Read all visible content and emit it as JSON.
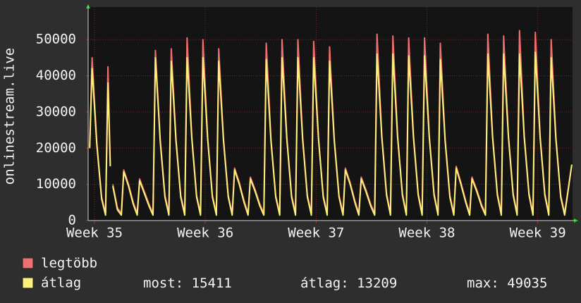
{
  "chart_data": {
    "type": "line",
    "ylabel": "onlinestream.live",
    "x": [
      -0.3,
      -0.15,
      0.15,
      0.45,
      0.7,
      0.85,
      1.0,
      1.08,
      1.16,
      1.45,
      1.7,
      1.85,
      2.15,
      2.45,
      2.7,
      2.85,
      3.15,
      3.45,
      3.7,
      3.85,
      4.15,
      4.45,
      4.7,
      4.85,
      5.15,
      5.45,
      5.7,
      5.85,
      6.15,
      6.45,
      6.7,
      6.85,
      7.15,
      7.45,
      7.7,
      7.85,
      8.15,
      8.45,
      8.7,
      8.85,
      9.15,
      9.45,
      9.7,
      9.85,
      10.15,
      10.45,
      10.7,
      10.85,
      11.15,
      11.45,
      11.7,
      11.85,
      12.15,
      12.45,
      12.7,
      12.85,
      13.15,
      13.45,
      13.7,
      13.85,
      14.15,
      14.45,
      14.7,
      14.85,
      15.15,
      15.45,
      15.7,
      15.85,
      16.15,
      16.45,
      16.7,
      16.85,
      17.15,
      17.45,
      17.7,
      17.85,
      18.15,
      18.45,
      18.7,
      18.85,
      19.15,
      19.45,
      19.7,
      19.85,
      20.15,
      20.45,
      20.7,
      20.85,
      21.15,
      21.45,
      21.7,
      21.85,
      22.15,
      22.45,
      22.7,
      22.85,
      23.15,
      23.45,
      23.7,
      23.85,
      24.15,
      24.45,
      24.7,
      24.85,
      25.15,
      25.45,
      25.7,
      25.85,
      26.15,
      26.45,
      26.7,
      26.85,
      27.15,
      27.45,
      27.7,
      27.85,
      28.15,
      28.45,
      28.7,
      28.85,
      29.15,
      29.45,
      29.7,
      30.15
    ],
    "series": [
      {
        "name": "legtöbb",
        "color": "#f07070",
        "values": [
          20500,
          45000,
          21500,
          6500,
          2000,
          42500,
          15500,
          null,
          10000,
          3500,
          2000,
          14000,
          10000,
          5000,
          2000,
          11500,
          8000,
          4500,
          2000,
          47000,
          22500,
          7000,
          2000,
          47500,
          22500,
          7000,
          2000,
          50500,
          23000,
          7000,
          2000,
          50000,
          23000,
          7000,
          2000,
          47500,
          22500,
          7000,
          2000,
          14500,
          10500,
          5500,
          2000,
          12000,
          8500,
          4500,
          2000,
          49000,
          22500,
          7000,
          2000,
          50000,
          23000,
          7000,
          2000,
          50000,
          23000,
          7000,
          2000,
          49500,
          23000,
          7000,
          2000,
          48000,
          22500,
          7000,
          2000,
          14500,
          10500,
          5500,
          2000,
          12000,
          8500,
          4500,
          2000,
          51500,
          23500,
          7500,
          2000,
          51000,
          23500,
          7500,
          2000,
          50500,
          23500,
          7500,
          2000,
          50500,
          23500,
          7500,
          2000,
          49000,
          22500,
          7000,
          2000,
          15000,
          10500,
          5500,
          2000,
          12000,
          8500,
          4500,
          2000,
          51500,
          23500,
          7500,
          2000,
          51000,
          23500,
          7500,
          2000,
          52500,
          23500,
          7500,
          2000,
          52000,
          23500,
          7500,
          2000,
          50000,
          23000,
          7000,
          2000,
          15500
        ]
      },
      {
        "name": "átlag",
        "color": "#fff07a",
        "values": [
          20000,
          42000,
          21000,
          6000,
          1500,
          38000,
          15000,
          null,
          9500,
          3000,
          1500,
          13500,
          9500,
          4500,
          1500,
          11000,
          7500,
          4000,
          1500,
          45000,
          22000,
          6500,
          1500,
          44000,
          22000,
          6500,
          1500,
          45000,
          22500,
          6500,
          1500,
          45000,
          22500,
          6500,
          1500,
          44000,
          22000,
          6500,
          1500,
          14000,
          10000,
          5000,
          1500,
          11500,
          8000,
          4000,
          1500,
          44500,
          22000,
          6500,
          1500,
          45000,
          22500,
          6500,
          1500,
          45000,
          22500,
          6500,
          1500,
          45000,
          22500,
          6500,
          1500,
          44000,
          22000,
          6500,
          1500,
          14000,
          10000,
          5000,
          1500,
          11500,
          8000,
          4000,
          1500,
          46000,
          23000,
          7000,
          1500,
          46000,
          23000,
          7000,
          1500,
          45500,
          23000,
          7000,
          1500,
          45500,
          23000,
          7000,
          1500,
          44500,
          22000,
          6500,
          1500,
          14500,
          10000,
          5000,
          1500,
          11500,
          8000,
          4000,
          1500,
          46000,
          23000,
          7000,
          1500,
          46000,
          23000,
          7000,
          1500,
          46000,
          23000,
          7000,
          1500,
          46500,
          23000,
          7000,
          1500,
          45000,
          22500,
          6500,
          1500,
          15411
        ]
      }
    ],
    "stats": [
      {
        "label": "most:",
        "value": "15411"
      },
      {
        "label": "átlag:",
        "value": "13209"
      },
      {
        "label": "max:",
        "value": "49035"
      }
    ],
    "xlim": [
      -0.4,
      30.2
    ],
    "xticks": [
      {
        "value": 0,
        "label": "Week 35"
      },
      {
        "value": 7,
        "label": "Week 36"
      },
      {
        "value": 14,
        "label": "Week 37"
      },
      {
        "value": 21,
        "label": "Week 38"
      },
      {
        "value": 28,
        "label": "Week 39"
      }
    ],
    "ylim": [
      0,
      59000
    ],
    "yticks": [
      0,
      10000,
      20000,
      30000,
      40000,
      50000
    ],
    "grid": true
  }
}
